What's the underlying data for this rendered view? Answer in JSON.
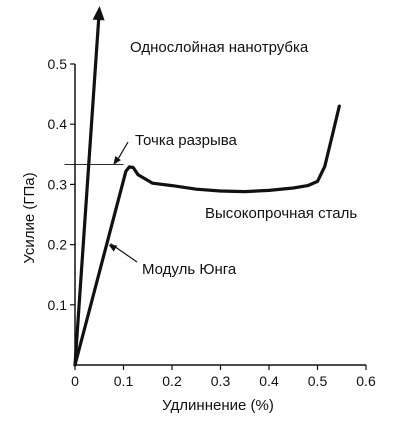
{
  "chart_data": {
    "type": "line",
    "xlabel": "Удлиннение (%)",
    "ylabel": "Усилие (ГПа)",
    "xlim": [
      0,
      0.6
    ],
    "ylim": [
      0,
      0.5
    ],
    "xticks": [
      "0",
      "0.1",
      "0.2",
      "0.3",
      "0.4",
      "0.5",
      "0.6"
    ],
    "yticks": [
      "0.1",
      "0.2",
      "0.3",
      "0.4",
      "0.5"
    ],
    "grid": false,
    "series": [
      {
        "name": "Однослойная нанотрубка",
        "x": [
          0,
          0.051
        ],
        "y": [
          0,
          0.6
        ]
      },
      {
        "name": "Высокопрочная сталь",
        "x": [
          0,
          0.105,
          0.112,
          0.12,
          0.13,
          0.16,
          0.2,
          0.25,
          0.3,
          0.35,
          0.4,
          0.45,
          0.48,
          0.5,
          0.515,
          0.53,
          0.545
        ],
        "y": [
          0,
          0.322,
          0.329,
          0.328,
          0.316,
          0.302,
          0.298,
          0.292,
          0.289,
          0.288,
          0.29,
          0.294,
          0.298,
          0.305,
          0.33,
          0.38,
          0.43
        ]
      }
    ],
    "annotations": [
      {
        "text": "Однослойная нанотрубка",
        "target_x": 0.051,
        "target_y": 0.6,
        "pointer": false
      },
      {
        "text": "Точка разрыва",
        "target_x": 0.075,
        "target_y": 0.333,
        "pointer": true
      },
      {
        "text": "Высокопрочная сталь",
        "target_x": 0.3,
        "target_y": 0.288,
        "pointer": false
      },
      {
        "text": "Модуль Юнга",
        "target_x": 0.065,
        "target_y": 0.2,
        "pointer": true
      }
    ],
    "break_point": {
      "y": 0.333,
      "x_start": -0.005,
      "x_end": 0.1
    }
  }
}
